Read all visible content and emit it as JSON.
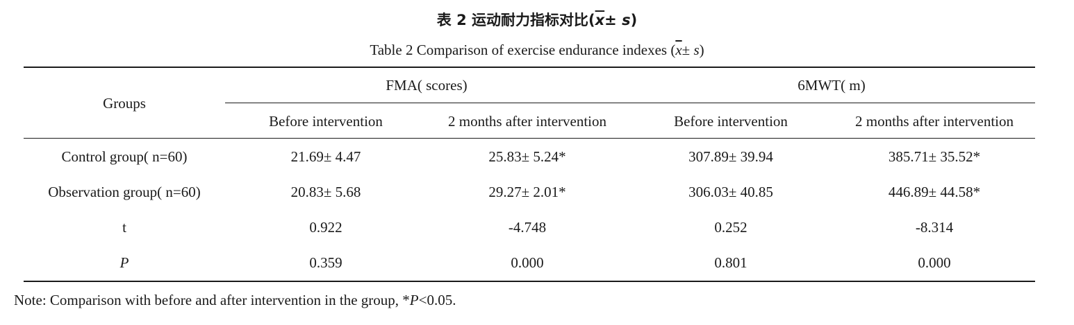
{
  "title": {
    "cn_prefix": "表 2  运动耐力指标对比(",
    "en_prefix": "Table 2  Comparison of exercise endurance indexes (",
    "mean_symbol": "x",
    "pm_symbol": "± ",
    "sd_symbol": "s",
    "suffix": ")"
  },
  "table": {
    "groups_header": "Groups",
    "fma_header": "FMA( scores)",
    "mwt_header": "6MWT( m)",
    "sub_headers": [
      "Before intervention",
      "2 months after intervention",
      "Before intervention",
      "2 months after intervention"
    ],
    "rows": [
      {
        "label": "Control group( n=60)",
        "cells": [
          "21.69± 4.47",
          "25.83± 5.24*",
          "307.89± 39.94",
          "385.71± 35.52*"
        ]
      },
      {
        "label": "Observation group( n=60)",
        "cells": [
          "20.83± 5.68",
          "29.27± 2.01*",
          "306.03± 40.85",
          "446.89± 44.58*"
        ]
      },
      {
        "label": "t",
        "cells": [
          "0.922",
          "-4.748",
          "0.252",
          "-8.314"
        ]
      },
      {
        "label": "P",
        "cells": [
          "0.359",
          "0.000",
          "0.801",
          "0.000"
        ]
      }
    ]
  },
  "note": {
    "prefix": "Note: Comparison with before and after intervention in the group, *",
    "p_symbol": "P",
    "suffix": "<0.05."
  }
}
